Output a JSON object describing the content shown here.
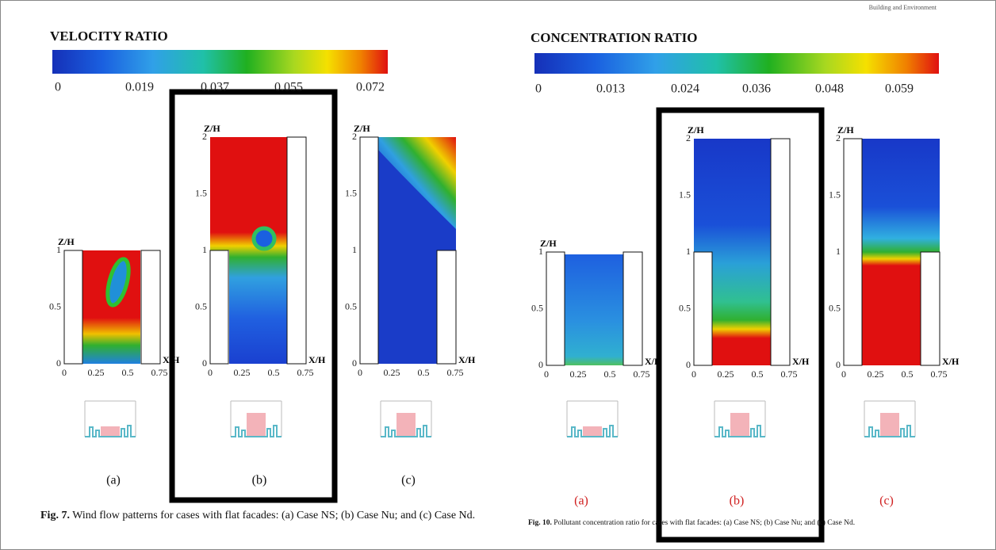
{
  "journal_note": "Building and Environment",
  "left_figure": {
    "colorbar_title": "VELOCITY RATIO",
    "colorbar_ticks": [
      "0",
      "0.019",
      "0.037",
      "0.055",
      "0.072"
    ],
    "panels": [
      {
        "y_axis_label": "Z/H",
        "x_axis_label": "X/H",
        "y_ticks": [
          "0",
          "0.5",
          "1"
        ],
        "x_ticks": [
          "0",
          "0.25",
          "0.5",
          "0.75"
        ],
        "label": "(a)"
      },
      {
        "y_axis_label": "Z/H",
        "x_axis_label": "X/H",
        "y_ticks": [
          "0",
          "0.5",
          "1",
          "1.5",
          "2"
        ],
        "x_ticks": [
          "0",
          "0.25",
          "0.5",
          "0.75"
        ],
        "label": "(b)"
      },
      {
        "y_axis_label": "Z/H",
        "x_axis_label": "X/H",
        "y_ticks": [
          "0",
          "0.5",
          "1",
          "1.5",
          "2"
        ],
        "x_ticks": [
          "0",
          "0.25",
          "0.5",
          "0.75"
        ],
        "label": "(c)"
      }
    ],
    "caption": {
      "number": "Fig. 7.",
      "text": "Wind flow patterns for cases with flat facades: (a) Case NS; (b) Case Nu; and (c) Case Nd."
    }
  },
  "right_figure": {
    "colorbar_title": "CONCENTRATION RATIO",
    "colorbar_ticks": [
      "0",
      "0.013",
      "0.024",
      "0.036",
      "0.048",
      "0.059"
    ],
    "panels": [
      {
        "y_axis_label": "Z/H",
        "x_axis_label": "X/H",
        "y_ticks": [
          "0",
          "0.5",
          "1"
        ],
        "x_ticks": [
          "0",
          "0.25",
          "0.5",
          "0.75"
        ],
        "label": "(a)"
      },
      {
        "y_axis_label": "Z/H",
        "x_axis_label": "X/H",
        "y_ticks": [
          "0",
          "0.5",
          "1",
          "1.5",
          "2"
        ],
        "x_ticks": [
          "0",
          "0.25",
          "0.5",
          "0.75"
        ],
        "label": "(b)"
      },
      {
        "y_axis_label": "Z/H",
        "x_axis_label": "X/H",
        "y_ticks": [
          "0",
          "0.5",
          "1",
          "1.5",
          "2"
        ],
        "x_ticks": [
          "0",
          "0.25",
          "0.5",
          "0.75"
        ],
        "label": "(c)"
      }
    ],
    "caption": {
      "number": "Fig. 10.",
      "text": "Pollutant concentration ratio for cases with flat facades: (a) Case NS; (b) Case Nu; and (c) Case Nd."
    }
  }
}
